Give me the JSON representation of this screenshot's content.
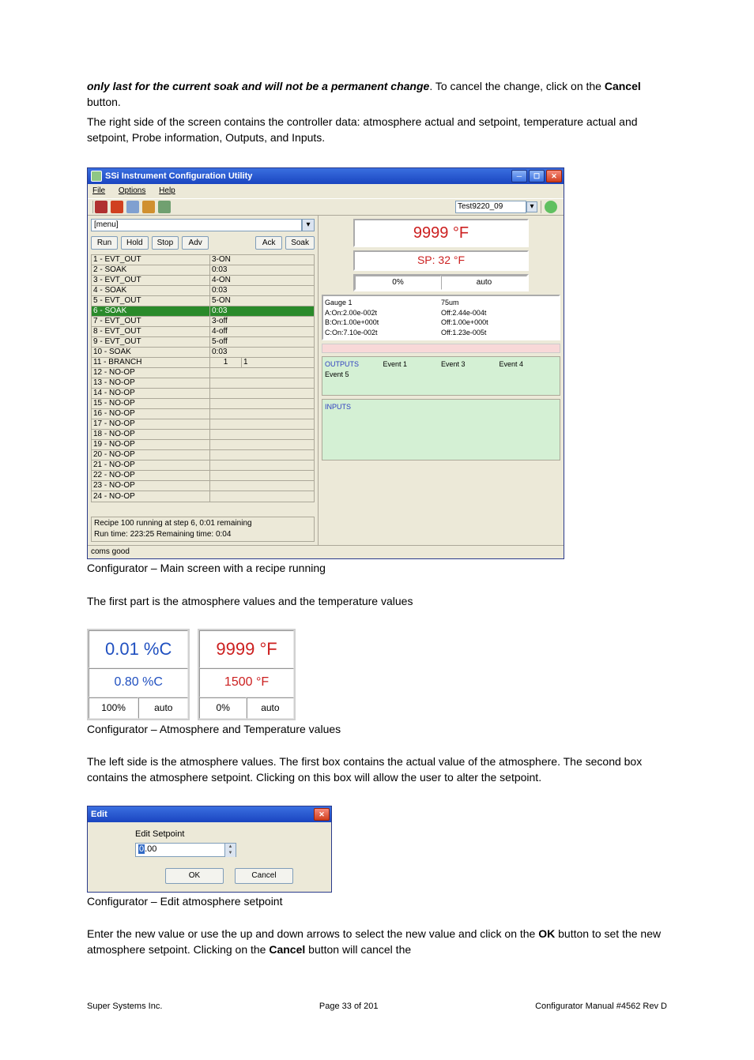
{
  "intro": {
    "line1a": "only last for the current soak and will not be a permanent change",
    "line1b": ".  To cancel the change, click on the ",
    "line1c": "Cancel",
    "line1d": " button.",
    "line2": " The right side of the screen contains the controller data: atmosphere actual and setpoint, temperature actual and setpoint, Probe information, Outputs, and Inputs."
  },
  "win": {
    "title": "SSi Instrument Configuration Utility",
    "menu": {
      "file": "File",
      "options": "Options",
      "help": "Help"
    },
    "systembox": "Test9220_09",
    "leftpane": {
      "menu_dd": "[menu]",
      "buttons": {
        "run": "Run",
        "hold": "Hold",
        "stop": "Stop",
        "adv": "Adv",
        "ack": "Ack",
        "soak": "Soak"
      },
      "steps": [
        {
          "c1": "1 - EVT_OUT",
          "c2": "3-ON"
        },
        {
          "c1": "2 - SOAK",
          "c2": "0:03"
        },
        {
          "c1": "3 - EVT_OUT",
          "c2": "4-ON"
        },
        {
          "c1": "4 - SOAK",
          "c2": "0:03"
        },
        {
          "c1": "5 - EVT_OUT",
          "c2": "5-ON"
        },
        {
          "c1": "6 - SOAK",
          "c2": "0:03",
          "sel": true
        },
        {
          "c1": "7 - EVT_OUT",
          "c2": "3-off"
        },
        {
          "c1": "8 - EVT_OUT",
          "c2": "4-off"
        },
        {
          "c1": "9 - EVT_OUT",
          "c2": "5-off"
        },
        {
          "c1": "10 - SOAK",
          "c2": "0:03"
        },
        {
          "c1": "11 - BRANCH",
          "branch": true,
          "b1": "1",
          "b2": "1"
        },
        {
          "c1": "12 - NO-OP",
          "c2": ""
        },
        {
          "c1": "13 - NO-OP",
          "c2": ""
        },
        {
          "c1": "14 - NO-OP",
          "c2": ""
        },
        {
          "c1": "15 - NO-OP",
          "c2": ""
        },
        {
          "c1": "16 - NO-OP",
          "c2": ""
        },
        {
          "c1": "17 - NO-OP",
          "c2": ""
        },
        {
          "c1": "18 - NO-OP",
          "c2": ""
        },
        {
          "c1": "19 - NO-OP",
          "c2": ""
        },
        {
          "c1": "20 - NO-OP",
          "c2": ""
        },
        {
          "c1": "21 - NO-OP",
          "c2": ""
        },
        {
          "c1": "22 - NO-OP",
          "c2": ""
        },
        {
          "c1": "23 - NO-OP",
          "c2": ""
        },
        {
          "c1": "24 - NO-OP",
          "c2": ""
        }
      ],
      "recipe_line1": "Recipe 100 running at step 6, 0:01 remaining",
      "recipe_line2": "Run time: 223:25 Remaining time: 0:04"
    },
    "rightpane": {
      "temp": "9999 °F",
      "sp": "SP: 32 °F",
      "pct": "0%",
      "mode": "auto",
      "gauge": {
        "col1": [
          "Gauge 1",
          "A:On:2.00e-002t",
          "B:On:1.00e+000t",
          "C:On:7.10e-002t"
        ],
        "col2": [
          "75um",
          "Off:2.44e-004t",
          "Off:1.00e+000t",
          "Off:1.23e-005t"
        ]
      },
      "out_hdr": "OUTPUTS",
      "out_events": [
        "Event 1",
        "Event 3",
        "Event 4"
      ],
      "out_event5": "Event 5",
      "in_hdr": "INPUTS"
    },
    "status": "coms good"
  },
  "caption1": "Configurator – Main screen with a recipe running",
  "mid_text": "The first part is the atmosphere values and the temperature values",
  "values": {
    "atm_actual": "0.01 %C",
    "atm_sp": "0.80 %C",
    "atm_pct": "100%",
    "atm_mode": "auto",
    "temp_actual": "9999 °F",
    "temp_sp": "1500 °F",
    "temp_pct": "0%",
    "temp_mode": "auto"
  },
  "caption2": "Configurator – Atmosphere and Temperature values",
  "setpoint_para": "The left side is the atmosphere values.  The first box contains the actual value of the atmosphere.  The second box contains the atmosphere setpoint.  Clicking on this box will allow the user to alter the setpoint.",
  "edit_dlg": {
    "title": "Edit",
    "label": "Edit Setpoint",
    "val_hl": "0",
    "val_rest": ".00",
    "ok": "OK",
    "cancel": "Cancel"
  },
  "caption3": "Configurator – Edit atmosphere setpoint",
  "final": {
    "p1": "Enter the new value or use the up and down arrows to select the new value and click on the ",
    "ok": "OK",
    "p2": " button to set the new atmosphere setpoint.  Clicking on the ",
    "cancel": "Cancel",
    "p3": " button will cancel the"
  },
  "footer": {
    "left": "Super Systems Inc.",
    "center": "Page 33 of 201",
    "right": "Configurator Manual #4562 Rev D"
  }
}
